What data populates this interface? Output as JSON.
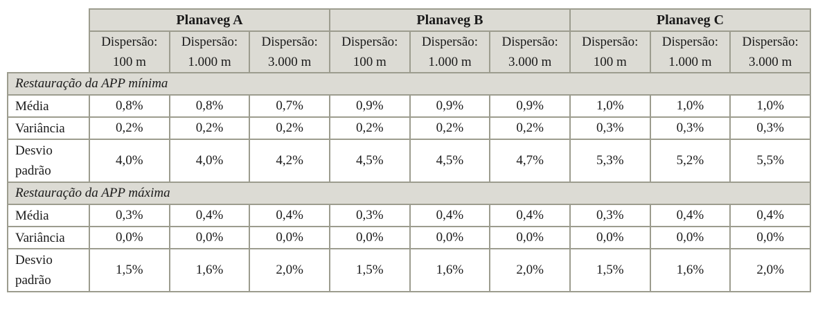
{
  "groups": [
    {
      "label": "Planaveg A"
    },
    {
      "label": "Planaveg B"
    },
    {
      "label": "Planaveg C"
    }
  ],
  "subheaders": [
    {
      "l1": "Dispersão:",
      "l2": "100 m"
    },
    {
      "l1": "Dispersão:",
      "l2": "1.000 m"
    },
    {
      "l1": "Dispersão:",
      "l2": "3.000 m"
    },
    {
      "l1": "Dispersão:",
      "l2": "100 m"
    },
    {
      "l1": "Dispersão:",
      "l2": "1.000 m"
    },
    {
      "l1": "Dispersão:",
      "l2": "3.000 m"
    },
    {
      "l1": "Dispersão:",
      "l2": "100 m"
    },
    {
      "l1": "Dispersão:",
      "l2": "1.000 m"
    },
    {
      "l1": "Dispersão:",
      "l2": "3.000 m"
    }
  ],
  "sections": [
    {
      "title": "Restauração da APP mínima",
      "rows": [
        {
          "label": "Média",
          "values": [
            "0,8%",
            "0,8%",
            "0,7%",
            "0,9%",
            "0,9%",
            "0,9%",
            "1,0%",
            "1,0%",
            "1,0%"
          ]
        },
        {
          "label": "Variância",
          "values": [
            "0,2%",
            "0,2%",
            "0,2%",
            "0,2%",
            "0,2%",
            "0,2%",
            "0,3%",
            "0,3%",
            "0,3%"
          ]
        },
        {
          "label_l1": "Desvio",
          "label_l2": "padrão",
          "values": [
            "4,0%",
            "4,0%",
            "4,2%",
            "4,5%",
            "4,5%",
            "4,7%",
            "5,3%",
            "5,2%",
            "5,5%"
          ]
        }
      ]
    },
    {
      "title": "Restauração da APP máxima",
      "rows": [
        {
          "label": "Média",
          "values": [
            "0,3%",
            "0,4%",
            "0,4%",
            "0,3%",
            "0,4%",
            "0,4%",
            "0,3%",
            "0,4%",
            "0,4%"
          ]
        },
        {
          "label": "Variância",
          "values": [
            "0,0%",
            "0,0%",
            "0,0%",
            "0,0%",
            "0,0%",
            "0,0%",
            "0,0%",
            "0,0%",
            "0,0%"
          ]
        },
        {
          "label_l1": "Desvio",
          "label_l2": "padrão",
          "values": [
            "1,5%",
            "1,6%",
            "2,0%",
            "1,5%",
            "1,6%",
            "2,0%",
            "1,5%",
            "1,6%",
            "2,0%"
          ]
        }
      ]
    }
  ],
  "colors": {
    "header_bg": "#dcdbd4",
    "border": "#9c9c8e"
  }
}
